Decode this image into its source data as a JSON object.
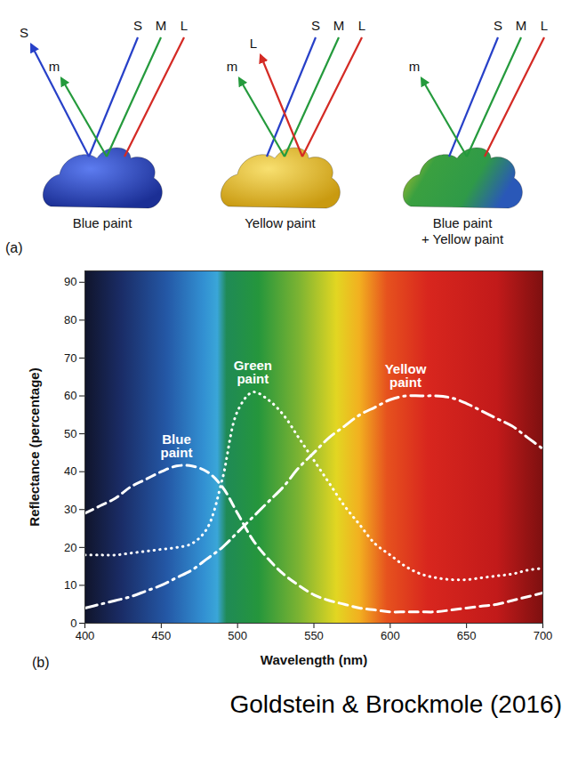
{
  "panel_a": {
    "letter": "(a)",
    "items": [
      {
        "label": "Blue paint",
        "incoming": [
          "S",
          "M",
          "L"
        ],
        "reflected": [
          "S",
          "m"
        ]
      },
      {
        "label": "Yellow paint",
        "incoming": [
          "S",
          "M",
          "L"
        ],
        "reflected": [
          "L",
          "m"
        ]
      },
      {
        "label": "Blue paint + Yellow paint",
        "incoming": [
          "S",
          "M",
          "L"
        ],
        "reflected": [
          "m"
        ]
      }
    ]
  },
  "chart_data": {
    "type": "line",
    "xlabel": "Wavelength (nm)",
    "ylabel": "Reflectance (percentage)",
    "x": [
      400,
      410,
      420,
      430,
      440,
      450,
      460,
      470,
      480,
      490,
      500,
      510,
      520,
      530,
      540,
      550,
      560,
      570,
      580,
      590,
      600,
      610,
      620,
      630,
      640,
      650,
      660,
      670,
      680,
      690,
      700
    ],
    "series": [
      {
        "name": "Blue paint",
        "color": "#ffffff",
        "line_style": "dashed",
        "values": [
          29,
          31,
          33,
          36,
          38,
          40,
          41.5,
          41.5,
          40,
          36,
          29,
          22,
          17,
          13,
          10,
          7.5,
          6,
          5,
          4,
          3.5,
          3,
          3,
          3,
          3,
          3.5,
          4,
          4.5,
          5,
          6,
          7,
          8
        ]
      },
      {
        "name": "Green paint",
        "color": "#ffffff",
        "line_style": "dotted",
        "values": [
          18,
          18,
          18,
          18.5,
          19,
          19.5,
          20,
          21,
          25,
          38,
          56,
          61,
          59,
          55,
          49,
          43,
          37,
          31,
          26,
          21,
          18,
          15,
          13,
          12,
          11.5,
          11.5,
          12,
          12.5,
          13,
          14,
          14.5
        ]
      },
      {
        "name": "Yellow paint",
        "color": "#ffffff",
        "line_style": "dashdot",
        "values": [
          4,
          5,
          6,
          7,
          8.5,
          10,
          12,
          14,
          17,
          20,
          24,
          28,
          32,
          36,
          41,
          45,
          49,
          52,
          55,
          57,
          59,
          60,
          60,
          60,
          59.5,
          58,
          56,
          54,
          52,
          49,
          46
        ]
      }
    ],
    "xlim": [
      400,
      700
    ],
    "ylim": [
      0,
      93
    ],
    "xticks": [
      400,
      450,
      500,
      550,
      600,
      650,
      700
    ],
    "yticks": [
      0,
      10,
      20,
      30,
      40,
      50,
      60,
      70,
      80,
      90
    ],
    "grid": false
  },
  "panel_b": {
    "letter": "(b)"
  },
  "source": "Goldstein & Brockmole (2016)"
}
